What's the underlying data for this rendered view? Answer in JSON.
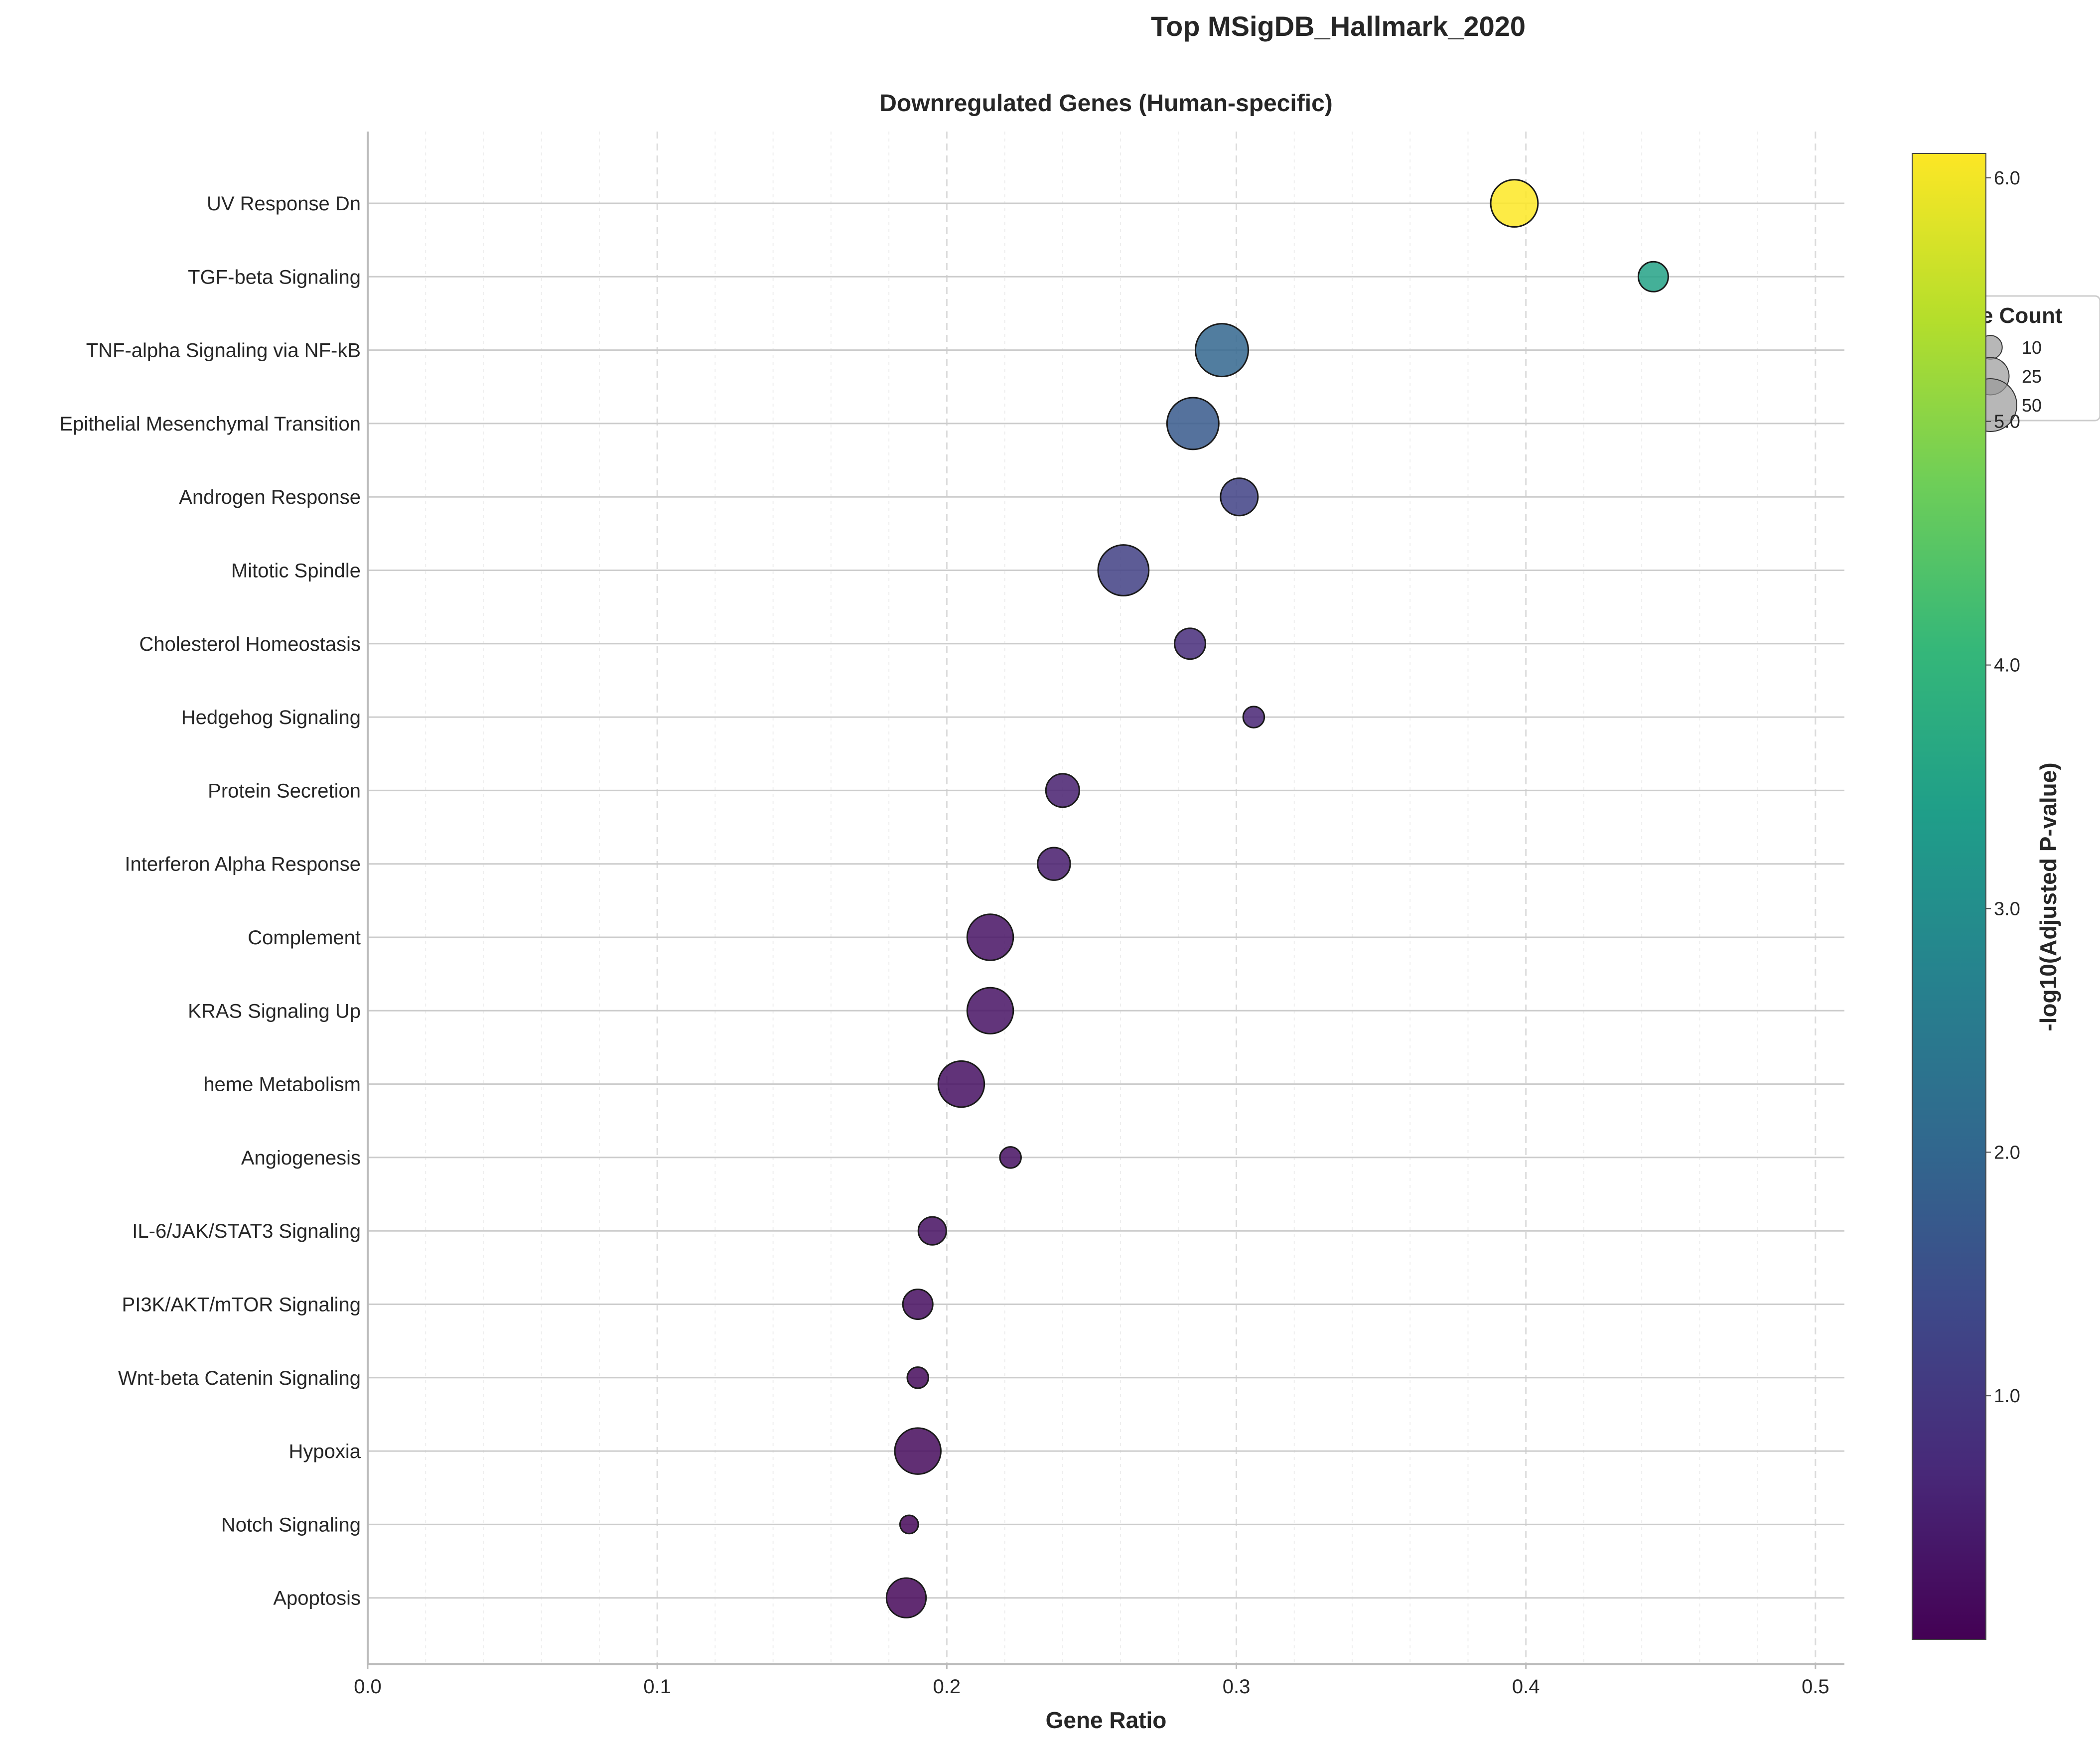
{
  "suptitle": "Top MSigDB_Hallmark_2020",
  "chart_data": {
    "type": "scatter",
    "title": "Downregulated Genes (Human-specific)",
    "xlabel": "Gene Ratio",
    "ylabel": "",
    "xlim": [
      0,
      0.51
    ],
    "xticks": [
      "0.0",
      "0.1",
      "0.2",
      "0.3",
      "0.4",
      "0.5"
    ],
    "grid": true,
    "categories": [
      "UV Response Dn",
      "TGF-beta Signaling",
      "TNF-alpha Signaling via NF-kB",
      "Epithelial Mesenchymal Transition",
      "Androgen Response",
      "Mitotic Spindle",
      "Cholesterol Homeostasis",
      "Hedgehog Signaling",
      "Protein Secretion",
      "Interferon Alpha Response",
      "Complement",
      "KRAS Signaling Up",
      "heme Metabolism",
      "Angiogenesis",
      "IL-6/JAK/STAT3 Signaling",
      "PI3K/AKT/mTOR  Signaling",
      "Wnt-beta Catenin Signaling",
      "Hypoxia",
      "Notch Signaling",
      "Apoptosis"
    ],
    "gene_ratio": [
      0.396,
      0.444,
      0.295,
      0.285,
      0.301,
      0.261,
      0.284,
      0.306,
      0.24,
      0.237,
      0.215,
      0.215,
      0.205,
      0.222,
      0.195,
      0.19,
      0.19,
      0.19,
      0.187,
      0.186
    ],
    "gene_count": [
      40,
      16,
      50,
      48,
      25,
      46,
      17,
      8,
      20,
      19,
      38,
      38,
      38,
      8,
      14,
      16,
      8,
      38,
      6,
      28
    ],
    "neg_log10_padj": [
      6.1,
      3.5,
      2.0,
      1.7,
      1.2,
      1.15,
      0.75,
      0.6,
      0.5,
      0.45,
      0.3,
      0.3,
      0.25,
      0.25,
      0.25,
      0.2,
      0.15,
      0.15,
      0.1,
      0.1
    ],
    "colorbar": {
      "label": "-log10(Adjusted P-value)",
      "range": [
        0.0,
        6.1
      ],
      "ticks": [
        "1.0",
        "2.0",
        "3.0",
        "4.0",
        "5.0",
        "6.0"
      ],
      "colormap": "viridis"
    },
    "size_legend": {
      "title": "Gene Count",
      "values": [
        10,
        25,
        50
      ],
      "labels": [
        "10",
        "25",
        "50"
      ],
      "placement": "right, partly covered by colorbar"
    }
  },
  "colors": {
    "viridis": [
      "#440154",
      "#482878",
      "#3e4989",
      "#31688e",
      "#26828e",
      "#1f9e89",
      "#35b779",
      "#6ece58",
      "#b5de2b",
      "#fde725"
    ],
    "grid": "#dddddd",
    "row_line": "#cccccc",
    "axis_spine": "#bbbbbb"
  }
}
